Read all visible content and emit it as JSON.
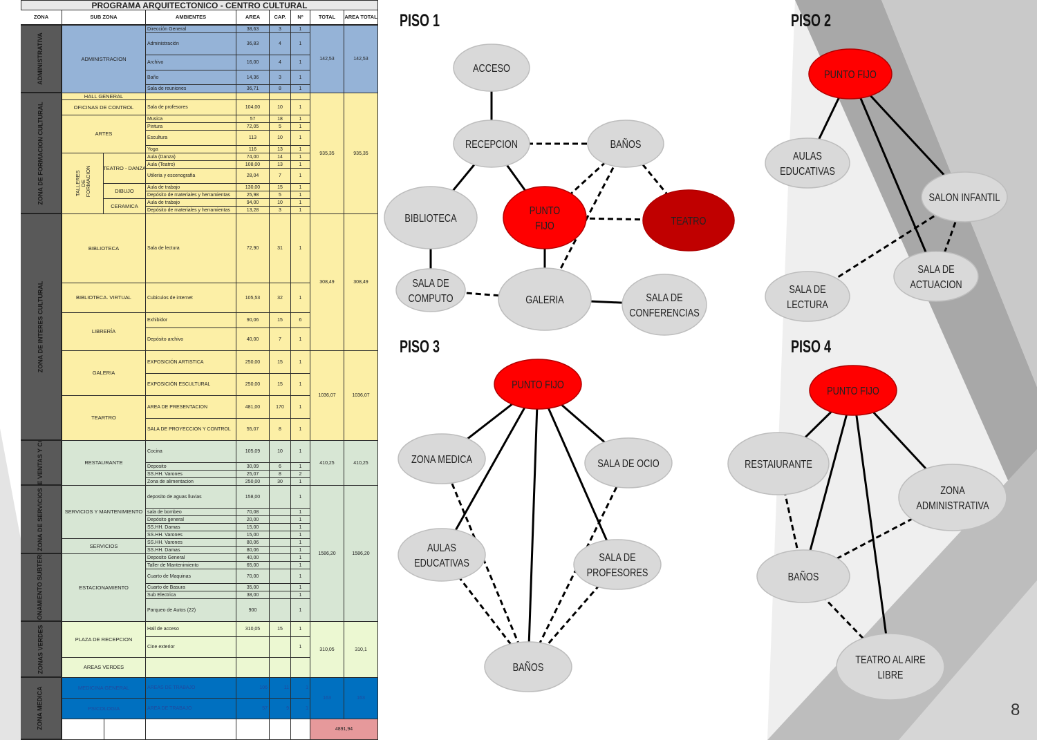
{
  "program": {
    "title": "PROGRAMA ARQUITECTONICO - CENTRO CULTURAL",
    "headers": [
      "ZONA",
      "SUB ZONA",
      "AMBIENTES",
      "AREA",
      "CAP.",
      "Nº",
      "TOTAL",
      "AREA TOTAL"
    ],
    "zones": [
      {
        "label": "ADMINISTRATIVA",
        "color": "#95b3d7",
        "subzones": [
          {
            "label": "ADMINISTRACION",
            "rooms": [
              [
                "Dirección General",
                "38,63",
                "3",
                "1"
              ],
              [
                "Administración",
                "36,83",
                "4",
                "1"
              ],
              [
                "Archivo",
                "16,00",
                "4",
                "1"
              ],
              [
                "Baño",
                "14,36",
                "3",
                "1"
              ],
              [
                "Sala de reuniones",
                "36,71",
                "8",
                "1"
              ]
            ]
          }
        ]
      },
      {
        "label": "ZONA DE FORMACION CULTURAL",
        "color": "#fcefa6",
        "subzones": [
          {
            "label": "HALL GENERAL",
            "rooms": [
              [
                "",
                "",
                "",
                ""
              ]
            ]
          },
          {
            "label": "OFICINAS DE CONTROL",
            "rooms": [
              [
                "Sala de profesores",
                "104,00",
                "10",
                "1"
              ]
            ]
          },
          {
            "label": "ARTES",
            "rooms": [
              [
                "Musica",
                "57",
                "18",
                "1"
              ],
              [
                "Pintura",
                "72,05",
                "5",
                "1"
              ],
              [
                "Escultura",
                "113",
                "10",
                "1"
              ],
              [
                "Yoga",
                "116",
                "13",
                "1"
              ]
            ]
          },
          {
            "group": "TALLERES DE FORMACION",
            "label": "TEATRO - DANZA",
            "rooms": [
              [
                "Aula  (Danza)",
                "74,00",
                "14",
                "1"
              ],
              [
                "Aula (Teatro)",
                "108,00",
                "13",
                "1"
              ],
              [
                "Utileria y escenografia",
                "28,04",
                "7",
                "1"
              ]
            ]
          },
          {
            "group": "TALLERES DE FORMACION",
            "label": "DIBUJO",
            "rooms": [
              [
                "Aula de trabajo",
                "130,00",
                "15",
                "1"
              ],
              [
                "Depósito de materiales y herramientas",
                "25,98",
                "5",
                "1"
              ]
            ]
          },
          {
            "group": "TALLERES DE FORMACION",
            "label": "CERAMICA",
            "rooms": [
              [
                "Aula de trabajo",
                "94,00",
                "10",
                "1"
              ],
              [
                "Depósito de materiales y herramientas",
                "13,28",
                "3",
                "1"
              ]
            ]
          }
        ]
      },
      {
        "label": "ZONA DE INTERES CULTURAL",
        "color": "#fcefa6",
        "subzones": [
          {
            "label": "BIBLIOTECA",
            "rooms": [
              [
                "Sala de lectura",
                "72,90",
                "31",
                "1"
              ]
            ]
          },
          {
            "label": "BIBLIOTECA. VIRTUAL",
            "rooms": [
              [
                "Cubiculos de internet",
                "105,53",
                "32",
                "1"
              ]
            ]
          },
          {
            "label": "LIBRERÍA",
            "rooms": [
              [
                "Exhibidor",
                "90,06",
                "15",
                "6"
              ],
              [
                "Depósito archivo",
                "40,00",
                "7",
                "1"
              ]
            ]
          },
          {
            "label": "GALERIA",
            "rooms": [
              [
                "EXPOSICIÓN ARTISTICA",
                "250,00",
                "15",
                "1"
              ],
              [
                "EXPOSICIÓN ESCULTURAL",
                "250,00",
                "15",
                "1"
              ]
            ]
          },
          {
            "label": "TEARTRO",
            "rooms": [
              [
                "AREA DE PRESENTACION",
                "481,00",
                "170",
                "1"
              ],
              [
                "SALA DE PROYECCION Y CONTROL",
                "55,07",
                "8",
                "1"
              ]
            ]
          }
        ]
      },
      {
        "label": "ZONA DE VENTAS Y COMIDAS",
        "color": "#d7e6d4",
        "subzones": [
          {
            "label": "RESTAURANTE",
            "rooms": [
              [
                "Cocina",
                "105,09",
                "10",
                "1"
              ],
              [
                "Deposito",
                "30,09",
                "6",
                "1"
              ],
              [
                "SS.HH. Varones",
                "25,07",
                "8",
                "2"
              ],
              [
                "Zona de alimentacion",
                "250,00",
                "30",
                "1"
              ]
            ]
          }
        ]
      },
      {
        "label": "ZONA DE SERVICIOS",
        "color": "#d7e6d4",
        "subzones": [
          {
            "label": "SERVICIOS Y MANTENIMIENTO",
            "rooms": [
              [
                "deposito de aguas lluvias",
                "158,00",
                "",
                "1"
              ],
              [
                "sala de bombeo",
                "70,08",
                "",
                "1"
              ],
              [
                "Depósito general",
                "20,00",
                "",
                "1"
              ],
              [
                "SS.HH. Damas",
                "15,00",
                "",
                "1"
              ],
              [
                "SS.HH. Varones",
                "15,00",
                "",
                "1"
              ]
            ]
          },
          {
            "label": "SERVICIOS",
            "rooms": [
              [
                "SS.HH. Varones",
                "80,06",
                "",
                "1"
              ],
              [
                "SS.HH. Damas",
                "80,06",
                "",
                "1"
              ]
            ]
          }
        ]
      },
      {
        "label": "ESTACIONAMIENTO SUBTERRANEO",
        "color": "#d7e6d4",
        "subzones": [
          {
            "label": "ESTACIONAMIENTO",
            "rooms": [
              [
                "Deposito General",
                "40,00",
                "",
                "1"
              ],
              [
                "Taller de Mantenimiento",
                "65,00",
                "",
                "1"
              ],
              [
                "Cuarto de Maquinas",
                "70,00",
                "",
                "1"
              ],
              [
                "Cuarto de Basura",
                "35,00",
                "",
                "1"
              ],
              [
                "Sub Electrica",
                "38,00",
                "",
                "1"
              ],
              [
                "Parqueo de Autos (22)",
                "900",
                "",
                "1"
              ]
            ]
          }
        ]
      },
      {
        "label": "ZONAS VERDES",
        "color": "#ecf8d2",
        "subzones": [
          {
            "label": "PLAZA DE RECEPCION",
            "rooms": [
              [
                "Hall de acceso",
                "310,05",
                "15",
                "1"
              ],
              [
                "Cine exterior",
                "",
                "",
                "1"
              ]
            ]
          },
          {
            "label": "AREAS VERDES",
            "rooms": [
              [
                "",
                "",
                "",
                ""
              ]
            ]
          }
        ]
      },
      {
        "label": "ZONA MEDICA",
        "color": "#0070c0",
        "subzones": [
          {
            "label": "MEDICINA GENERAL",
            "rooms": [
              [
                "AREAS DE TRABAJO",
                "106",
                "11",
                "1"
              ]
            ]
          },
          {
            "label": "PSICOLOGIA",
            "rooms": [
              [
                "AREA DE TRABAJO",
                "57",
                "9",
                "1"
              ]
            ]
          }
        ]
      }
    ],
    "totals": [
      [
        "142,53",
        "142,53"
      ],
      [
        "935,35",
        "935,35"
      ],
      [
        "308,49",
        "308,49"
      ],
      [
        "1036,07",
        "1036,07"
      ],
      [
        "410,25",
        "410,25"
      ],
      [
        "1586,20",
        "1586,20"
      ],
      [
        "310,05",
        "310,1"
      ],
      [
        "163",
        "163"
      ]
    ],
    "grand_total": "4891,94",
    "grand_total_color": "#e6999b"
  },
  "colors": {
    "node": "#d9d9d9",
    "punto_fijo": "#ff0000",
    "teatro": "#c00000"
  },
  "floors": [
    {
      "title": "PISO 1",
      "nodes": [
        {
          "id": "acceso",
          "lines": [
            "ACCESO"
          ],
          "kind": "node"
        },
        {
          "id": "recepcion",
          "lines": [
            "RECEPCION"
          ],
          "kind": "node"
        },
        {
          "id": "banos",
          "lines": [
            "BAÑOS"
          ],
          "kind": "node"
        },
        {
          "id": "biblioteca",
          "lines": [
            "BIBLIOTECA"
          ],
          "kind": "node"
        },
        {
          "id": "pf",
          "lines": [
            "PUNTO",
            "FIJO"
          ],
          "kind": "punto_fijo"
        },
        {
          "id": "teatro",
          "lines": [
            "TEATRO"
          ],
          "kind": "teatro"
        },
        {
          "id": "computo",
          "lines": [
            "SALA DE",
            "COMPUTO"
          ],
          "kind": "node"
        },
        {
          "id": "galeria",
          "lines": [
            "GALERIA"
          ],
          "kind": "node"
        },
        {
          "id": "conf",
          "lines": [
            "SALA DE",
            "CONFERENCIAS"
          ],
          "kind": "node"
        }
      ],
      "edges": [
        [
          "acceso",
          "recepcion",
          "solid"
        ],
        [
          "recepcion",
          "banos",
          "dashed"
        ],
        [
          "recepcion",
          "biblioteca",
          "solid"
        ],
        [
          "recepcion",
          "pf",
          "solid"
        ],
        [
          "banos",
          "pf",
          "dashed"
        ],
        [
          "banos",
          "teatro",
          "dashed"
        ],
        [
          "pf",
          "teatro",
          "dashed"
        ],
        [
          "banos",
          "galeria",
          "dashed"
        ],
        [
          "pf",
          "galeria",
          "solid"
        ],
        [
          "biblioteca",
          "computo",
          "solid"
        ],
        [
          "computo",
          "galeria",
          "dashed"
        ],
        [
          "galeria",
          "conf",
          "solid"
        ]
      ]
    },
    {
      "title": "PISO 2",
      "nodes": [
        {
          "id": "pf",
          "lines": [
            "PUNTO FIJO"
          ],
          "kind": "punto_fijo"
        },
        {
          "id": "aulas",
          "lines": [
            "AULAS",
            "EDUCATIVAS"
          ],
          "kind": "node"
        },
        {
          "id": "salon",
          "lines": [
            "SALON INFANTIL"
          ],
          "kind": "node"
        },
        {
          "id": "actuacion",
          "lines": [
            "SALA DE",
            "ACTUACION"
          ],
          "kind": "node"
        },
        {
          "id": "lectura",
          "lines": [
            "SALA DE",
            "LECTURA"
          ],
          "kind": "node"
        }
      ],
      "edges": [
        [
          "pf",
          "aulas",
          "solid"
        ],
        [
          "pf",
          "salon",
          "solid"
        ],
        [
          "pf",
          "actuacion",
          "solid"
        ],
        [
          "salon",
          "lectura",
          "dashed"
        ],
        [
          "salon",
          "actuacion",
          "dashed"
        ]
      ]
    },
    {
      "title": "PISO 3",
      "nodes": [
        {
          "id": "pf",
          "lines": [
            "PUNTO FIJO"
          ],
          "kind": "punto_fijo"
        },
        {
          "id": "medica",
          "lines": [
            "ZONA MEDICA"
          ],
          "kind": "node"
        },
        {
          "id": "ocio",
          "lines": [
            "SALA DE OCIO"
          ],
          "kind": "node"
        },
        {
          "id": "aulas",
          "lines": [
            "AULAS",
            "EDUCATIVAS"
          ],
          "kind": "node"
        },
        {
          "id": "prof",
          "lines": [
            "SALA DE",
            "PROFESORES"
          ],
          "kind": "node"
        },
        {
          "id": "banos",
          "lines": [
            "BAÑOS"
          ],
          "kind": "node"
        }
      ],
      "edges": [
        [
          "pf",
          "medica",
          "solid"
        ],
        [
          "pf",
          "ocio",
          "solid"
        ],
        [
          "pf",
          "aulas",
          "solid"
        ],
        [
          "pf",
          "prof",
          "solid"
        ],
        [
          "pf",
          "banos",
          "solid"
        ],
        [
          "medica",
          "banos",
          "dashed"
        ],
        [
          "ocio",
          "banos",
          "dashed"
        ],
        [
          "aulas",
          "banos",
          "dashed"
        ],
        [
          "prof",
          "banos",
          "dashed"
        ]
      ]
    },
    {
      "title": "PISO 4",
      "nodes": [
        {
          "id": "pf",
          "lines": [
            "PUNTO FIJO"
          ],
          "kind": "punto_fijo"
        },
        {
          "id": "rest",
          "lines": [
            "RESTAIURANTE"
          ],
          "kind": "node"
        },
        {
          "id": "admin",
          "lines": [
            "ZONA",
            "ADMINISTRATIVA"
          ],
          "kind": "node"
        },
        {
          "id": "banos",
          "lines": [
            "BAÑOS"
          ],
          "kind": "node"
        },
        {
          "id": "teatro",
          "lines": [
            "TEATRO AL AIRE",
            "LIBRE"
          ],
          "kind": "node"
        }
      ],
      "edges": [
        [
          "pf",
          "rest",
          "solid"
        ],
        [
          "pf",
          "admin",
          "solid"
        ],
        [
          "pf",
          "banos",
          "solid"
        ],
        [
          "pf",
          "teatro",
          "solid"
        ],
        [
          "rest",
          "banos",
          "dashed"
        ],
        [
          "admin",
          "banos",
          "dashed"
        ],
        [
          "banos",
          "teatro",
          "dashed"
        ]
      ]
    }
  ],
  "page_number": "8"
}
